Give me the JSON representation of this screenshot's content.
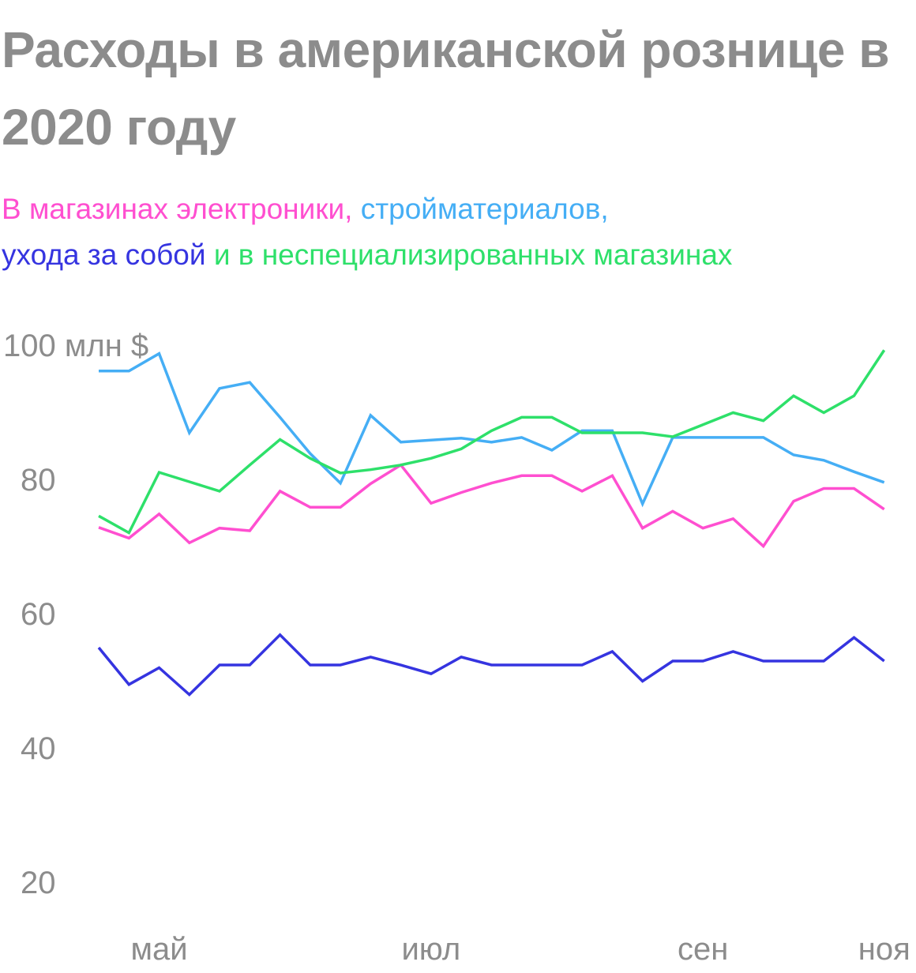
{
  "title": "Расходы в американской рознице в 2020 году",
  "subtitle": {
    "electronics": "В магазинах электроники,",
    "building": "стройматериалов,",
    "personal_care": "ухода за собой",
    "general": "и в неспециализированных магазинах"
  },
  "colors": {
    "title": "#8c8c8c",
    "electronics": "#ff4fd0",
    "building": "#45aef5",
    "personal_care": "#3534e0",
    "general": "#2ee06a"
  },
  "chart_data": {
    "type": "line",
    "title": "Расходы в американской рознице в 2020 году",
    "ylabel": "",
    "ylim": [
      20,
      100
    ],
    "yticks": [
      {
        "value": 100,
        "label": "100 млн $"
      },
      {
        "value": 80,
        "label": "80"
      },
      {
        "value": 60,
        "label": "60"
      },
      {
        "value": 40,
        "label": "40"
      },
      {
        "value": 20,
        "label": "20"
      }
    ],
    "xlim": [
      0,
      27
    ],
    "xticks": [
      {
        "x": 2,
        "label": "май"
      },
      {
        "x": 11,
        "label": "июл"
      },
      {
        "x": 20,
        "label": "сен"
      },
      {
        "x": 26,
        "label": "ноя"
      }
    ],
    "grid": false,
    "legend": "subtitle",
    "series": [
      {
        "name": "В магазинах электроники",
        "color": "#ff4fd0",
        "x": [
          0,
          1,
          2,
          3,
          4,
          5,
          6,
          7,
          8,
          9,
          10,
          11,
          12,
          13,
          14,
          15,
          16,
          17,
          18,
          19,
          20,
          21,
          22,
          23,
          24,
          25,
          26,
          27
        ],
        "values": [
          73.2,
          71.6,
          75.2,
          70.9,
          73.1,
          72.7,
          78.6,
          76.2,
          76.2,
          79.7,
          82.5,
          76.8,
          78.4,
          79.8,
          80.9,
          80.9,
          78.6,
          80.9,
          73.1,
          75.6,
          73.1,
          74.5,
          70.4,
          77.1,
          79,
          79,
          75.9,
          null
        ]
      },
      {
        "name": "стройматериалов",
        "color": "#45aef5",
        "x": [
          0,
          1,
          2,
          3,
          4,
          5,
          6,
          7,
          8,
          9,
          10,
          11,
          12,
          13,
          14,
          15,
          16,
          17,
          18,
          19,
          20,
          21,
          22,
          23,
          24,
          25,
          26,
          27
        ],
        "values": [
          96.5,
          96.5,
          99.1,
          87.3,
          93.9,
          94.8,
          89.6,
          84.2,
          79.8,
          89.9,
          85.9,
          86.2,
          86.5,
          85.9,
          86.6,
          84.7,
          87.6,
          87.6,
          76.7,
          86.6,
          86.6,
          86.6,
          86.6,
          84,
          83.2,
          81.5,
          79.9,
          null
        ]
      },
      {
        "name": "ухода за собой",
        "color": "#3534e0",
        "x": [
          0,
          1,
          2,
          3,
          4,
          5,
          6,
          7,
          8,
          9,
          10,
          11,
          12,
          13,
          14,
          15,
          16,
          17,
          18,
          19,
          20,
          21,
          22,
          23,
          24,
          25,
          26,
          27
        ],
        "values": [
          55.3,
          49.8,
          52.3,
          48.3,
          52.7,
          52.7,
          57.2,
          52.7,
          52.7,
          53.9,
          52.7,
          51.4,
          53.9,
          52.7,
          52.7,
          52.7,
          52.7,
          54.7,
          50.3,
          53.3,
          53.3,
          54.7,
          53.3,
          53.3,
          53.3,
          56.8,
          53.3,
          null
        ]
      },
      {
        "name": "и в неспециализированных магазинах",
        "color": "#2ee06a",
        "x": [
          0,
          1,
          2,
          3,
          4,
          5,
          6,
          7,
          8,
          9,
          10,
          11,
          12,
          13,
          14,
          15,
          16,
          17,
          18,
          19,
          20,
          21,
          22,
          23,
          24,
          25,
          26,
          27
        ],
        "values": [
          74.9,
          72.4,
          81.4,
          80,
          78.6,
          82.5,
          86.3,
          83.5,
          81.3,
          81.8,
          82.5,
          83.5,
          84.9,
          87.6,
          89.6,
          89.6,
          87.3,
          87.3,
          87.3,
          86.7,
          88.5,
          90.3,
          89.1,
          92.8,
          90.3,
          92.8,
          99.6,
          null
        ]
      }
    ]
  }
}
